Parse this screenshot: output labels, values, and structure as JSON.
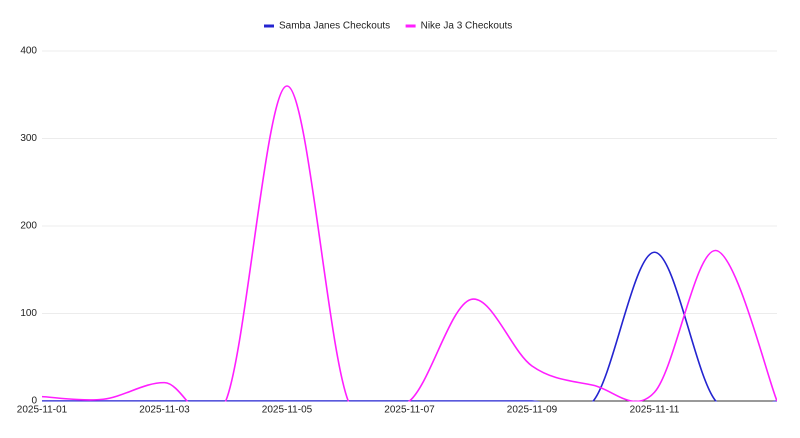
{
  "chart_data": {
    "type": "line",
    "x": [
      "2025-11-01",
      "2025-11-02",
      "2025-11-03",
      "2025-11-04",
      "2025-11-05",
      "2025-11-06",
      "2025-11-07",
      "2025-11-08",
      "2025-11-09",
      "2025-11-10",
      "2025-11-11",
      "2025-11-12",
      "2025-11-13"
    ],
    "xticks": [
      "2025-11-01",
      "2025-11-03",
      "2025-11-05",
      "2025-11-07",
      "2025-11-09",
      "2025-11-11"
    ],
    "series": [
      {
        "name": "Samba Janes Checkouts",
        "color": "#2424d0",
        "values": [
          0,
          0,
          0,
          0,
          0,
          0,
          0,
          0,
          0,
          0,
          170,
          0,
          0
        ]
      },
      {
        "name": "Nike Ja 3 Checkouts",
        "color": "#ff1fff",
        "values": [
          5,
          2,
          21,
          0,
          360,
          0,
          0,
          116,
          40,
          18,
          10,
          172,
          0
        ]
      }
    ],
    "ylim": [
      0,
      400
    ],
    "yticks": [
      0,
      100,
      200,
      300,
      400
    ],
    "grid": true,
    "legend": "top"
  }
}
